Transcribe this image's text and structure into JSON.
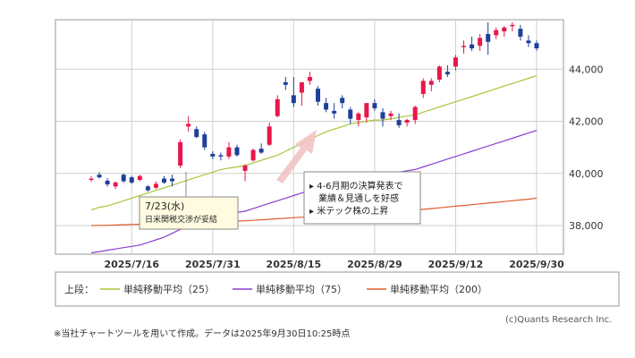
{
  "chart_data": {
    "type": "candlestick",
    "x_tick_labels": [
      "2025/7/16",
      "2025/7/31",
      "2025/8/15",
      "2025/8/29",
      "2025/9/12",
      "2025/9/30"
    ],
    "y_ticks": [
      38000,
      40000,
      42000,
      44000
    ],
    "y_tick_labels": [
      "38,000",
      "40,000",
      "42,000",
      "44,000"
    ],
    "ylim": [
      36900,
      45900
    ],
    "grid": true,
    "up_color": "#e8174a",
    "down_color": "#1f3f9a",
    "candles": [
      {
        "date": "2025/7/9",
        "o": 39750,
        "h": 39900,
        "l": 39680,
        "c": 39800
      },
      {
        "date": "2025/7/10",
        "o": 39950,
        "h": 40050,
        "l": 39800,
        "c": 39850
      },
      {
        "date": "2025/7/11",
        "o": 39720,
        "h": 39820,
        "l": 39500,
        "c": 39580
      },
      {
        "date": "2025/7/14",
        "o": 39500,
        "h": 39700,
        "l": 39400,
        "c": 39650
      },
      {
        "date": "2025/7/15",
        "o": 39950,
        "h": 40000,
        "l": 39650,
        "c": 39700
      },
      {
        "date": "2025/7/16",
        "o": 39850,
        "h": 39900,
        "l": 39600,
        "c": 39650
      },
      {
        "date": "2025/7/17",
        "o": 39750,
        "h": 39950,
        "l": 39700,
        "c": 39900
      },
      {
        "date": "2025/7/18",
        "o": 39500,
        "h": 39550,
        "l": 39300,
        "c": 39350
      },
      {
        "date": "2025/7/22",
        "o": 39450,
        "h": 39700,
        "l": 39400,
        "c": 39600
      },
      {
        "date": "2025/7/23",
        "o": 39800,
        "h": 39900,
        "l": 39600,
        "c": 39650
      },
      {
        "date": "2025/7/24",
        "o": 39800,
        "h": 39950,
        "l": 39500,
        "c": 39700
      },
      {
        "date": "2025/7/25",
        "o": 40300,
        "h": 41300,
        "l": 40200,
        "c": 41200
      },
      {
        "date": "2025/7/28",
        "o": 41800,
        "h": 42200,
        "l": 41600,
        "c": 41900
      },
      {
        "date": "2025/7/29",
        "o": 41700,
        "h": 41800,
        "l": 41350,
        "c": 41400
      },
      {
        "date": "2025/7/30",
        "o": 41500,
        "h": 41600,
        "l": 40900,
        "c": 41000
      },
      {
        "date": "2025/7/31",
        "o": 40750,
        "h": 40850,
        "l": 40550,
        "c": 40650
      },
      {
        "date": "2025/8/1",
        "o": 40700,
        "h": 40800,
        "l": 40500,
        "c": 40650
      },
      {
        "date": "2025/8/4",
        "o": 40650,
        "h": 41200,
        "l": 40550,
        "c": 41000
      },
      {
        "date": "2025/8/5",
        "o": 41000,
        "h": 41100,
        "l": 40650,
        "c": 40700
      },
      {
        "date": "2025/8/6",
        "o": 40100,
        "h": 40350,
        "l": 39700,
        "c": 40300
      },
      {
        "date": "2025/8/7",
        "o": 40500,
        "h": 40950,
        "l": 40450,
        "c": 40900
      },
      {
        "date": "2025/8/8",
        "o": 40950,
        "h": 41150,
        "l": 40750,
        "c": 40800
      },
      {
        "date": "2025/8/12",
        "o": 41100,
        "h": 41950,
        "l": 41050,
        "c": 41800
      },
      {
        "date": "2025/8/13",
        "o": 42200,
        "h": 43000,
        "l": 42150,
        "c": 42850
      },
      {
        "date": "2025/8/14",
        "o": 43500,
        "h": 43700,
        "l": 43200,
        "c": 43400
      },
      {
        "date": "2025/8/15",
        "o": 43000,
        "h": 43700,
        "l": 42550,
        "c": 42700
      },
      {
        "date": "2025/8/18",
        "o": 43100,
        "h": 43500,
        "l": 42600,
        "c": 43500
      },
      {
        "date": "2025/8/19",
        "o": 43550,
        "h": 43900,
        "l": 43400,
        "c": 43700
      },
      {
        "date": "2025/8/20",
        "o": 43250,
        "h": 43350,
        "l": 42600,
        "c": 42750
      },
      {
        "date": "2025/8/21",
        "o": 42700,
        "h": 42900,
        "l": 42350,
        "c": 42450
      },
      {
        "date": "2025/8/22",
        "o": 42400,
        "h": 42700,
        "l": 42100,
        "c": 42300
      },
      {
        "date": "2025/8/25",
        "o": 42900,
        "h": 43000,
        "l": 42500,
        "c": 42700
      },
      {
        "date": "2025/8/26",
        "o": 42450,
        "h": 42550,
        "l": 41900,
        "c": 42100
      },
      {
        "date": "2025/8/27",
        "o": 42050,
        "h": 42350,
        "l": 41800,
        "c": 42300
      },
      {
        "date": "2025/8/28",
        "o": 42150,
        "h": 42700,
        "l": 41950,
        "c": 42700
      },
      {
        "date": "2025/8/29",
        "o": 42700,
        "h": 42850,
        "l": 42400,
        "c": 42500
      },
      {
        "date": "2025/9/1",
        "o": 42350,
        "h": 42500,
        "l": 41800,
        "c": 42100
      },
      {
        "date": "2025/9/2",
        "o": 42200,
        "h": 42400,
        "l": 42050,
        "c": 42300
      },
      {
        "date": "2025/9/3",
        "o": 42050,
        "h": 42300,
        "l": 41750,
        "c": 41850
      },
      {
        "date": "2025/9/4",
        "o": 41950,
        "h": 42100,
        "l": 41800,
        "c": 42050
      },
      {
        "date": "2025/9/5",
        "o": 42050,
        "h": 42600,
        "l": 41900,
        "c": 42550
      },
      {
        "date": "2025/9/8",
        "o": 43050,
        "h": 43650,
        "l": 42900,
        "c": 43550
      },
      {
        "date": "2025/9/9",
        "o": 43400,
        "h": 43650,
        "l": 43150,
        "c": 43550
      },
      {
        "date": "2025/9/10",
        "o": 43600,
        "h": 44150,
        "l": 43500,
        "c": 44100
      },
      {
        "date": "2025/9/11",
        "o": 43900,
        "h": 44150,
        "l": 43700,
        "c": 43800
      },
      {
        "date": "2025/9/12",
        "o": 44100,
        "h": 44550,
        "l": 43950,
        "c": 44450
      },
      {
        "date": "2025/9/16",
        "o": 44850,
        "h": 45100,
        "l": 44600,
        "c": 44900
      },
      {
        "date": "2025/9/17",
        "o": 44950,
        "h": 45250,
        "l": 44700,
        "c": 44800
      },
      {
        "date": "2025/9/18",
        "o": 44900,
        "h": 45350,
        "l": 44700,
        "c": 45200
      },
      {
        "date": "2025/9/19",
        "o": 45350,
        "h": 45800,
        "l": 44550,
        "c": 45050
      },
      {
        "date": "2025/9/22",
        "o": 45300,
        "h": 45600,
        "l": 45150,
        "c": 45500
      },
      {
        "date": "2025/9/24",
        "o": 45450,
        "h": 45650,
        "l": 45250,
        "c": 45600
      },
      {
        "date": "2025/9/25",
        "o": 45650,
        "h": 45800,
        "l": 45450,
        "c": 45700
      },
      {
        "date": "2025/9/26",
        "o": 45550,
        "h": 45700,
        "l": 45100,
        "c": 45250
      },
      {
        "date": "2025/9/29",
        "o": 45100,
        "h": 45300,
        "l": 44850,
        "c": 45000
      },
      {
        "date": "2025/9/30",
        "o": 45000,
        "h": 45100,
        "l": 44700,
        "c": 44800
      }
    ],
    "moving_averages": [
      {
        "name": "単純移動平均（25）",
        "color": "#a8c63c",
        "values": [
          38600,
          38700,
          38750,
          38850,
          38950,
          39050,
          39150,
          39250,
          39350,
          39450,
          39550,
          39650,
          39750,
          39850,
          39950,
          40050,
          40150,
          40200,
          40250,
          40300,
          40400,
          40500,
          40600,
          40700,
          40850,
          41000,
          41150,
          41300,
          41450,
          41600,
          41700,
          41800,
          41900,
          41950,
          42000,
          42050,
          42050,
          42100,
          42150,
          42200,
          42250,
          42350,
          42450,
          42550,
          42650,
          42750,
          42850,
          42950,
          43050,
          43150,
          43250,
          43350,
          43450,
          43550,
          43650,
          43750
        ]
      },
      {
        "name": "単純移動平均（75）",
        "color": "#8a3fd1",
        "values": [
          36950,
          37000,
          37050,
          37100,
          37150,
          37200,
          37250,
          37350,
          37450,
          37550,
          37700,
          37850,
          38000,
          38100,
          38200,
          38300,
          38400,
          38450,
          38500,
          38550,
          38650,
          38750,
          38850,
          38950,
          39050,
          39150,
          39250,
          39350,
          39450,
          39550,
          39650,
          39700,
          39750,
          39800,
          39850,
          39900,
          39950,
          40000,
          40050,
          40100,
          40150,
          40250,
          40350,
          40450,
          40550,
          40650,
          40750,
          40850,
          40950,
          41050,
          41150,
          41250,
          41350,
          41450,
          41550,
          41650
        ]
      },
      {
        "name": "単純移動平均（200）",
        "color": "#e05a2b",
        "values": [
          38000,
          38005,
          38010,
          38020,
          38030,
          38040,
          38050,
          38060,
          38070,
          38080,
          38090,
          38100,
          38110,
          38120,
          38130,
          38140,
          38150,
          38160,
          38170,
          38180,
          38200,
          38220,
          38240,
          38260,
          38280,
          38300,
          38320,
          38340,
          38360,
          38380,
          38400,
          38420,
          38440,
          38460,
          38480,
          38500,
          38520,
          38540,
          38560,
          38580,
          38600,
          38620,
          38650,
          38680,
          38710,
          38740,
          38770,
          38800,
          38830,
          38860,
          38890,
          38920,
          38950,
          38980,
          39010,
          39050
        ]
      }
    ],
    "legend_prefix": "上段：",
    "annotations": [
      {
        "lines": [
          "7/23(水)",
          "日米関税交渉が妥結"
        ]
      },
      {
        "lines": [
          "▸ 4-6月期の決算発表で",
          "　業績＆見通しを好感",
          "▸ 米テック株の上昇"
        ]
      }
    ]
  },
  "footnote": "※当社チャートツールを用いて作成。データは2025年9月30日10:25時点",
  "copyright": "(c)Quants Research Inc."
}
